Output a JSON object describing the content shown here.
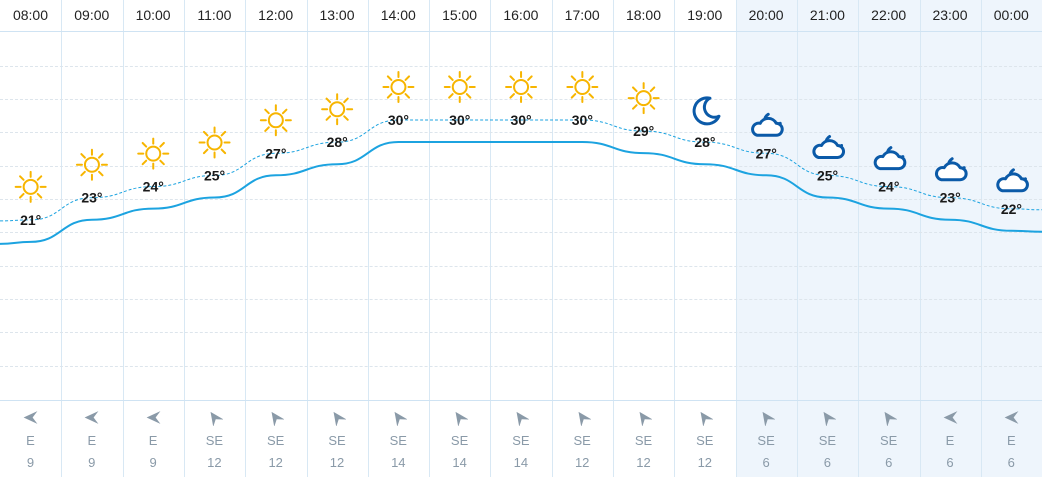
{
  "forecast": {
    "hours": [
      {
        "time": "08:00",
        "temp": 21,
        "temp_label": "21°",
        "icon": "sun-icon",
        "wind_dir": "E",
        "wind_speed": "9",
        "night": false
      },
      {
        "time": "09:00",
        "temp": 23,
        "temp_label": "23°",
        "icon": "sun-icon",
        "wind_dir": "E",
        "wind_speed": "9",
        "night": false
      },
      {
        "time": "10:00",
        "temp": 24,
        "temp_label": "24°",
        "icon": "sun-icon",
        "wind_dir": "E",
        "wind_speed": "9",
        "night": false
      },
      {
        "time": "11:00",
        "temp": 25,
        "temp_label": "25°",
        "icon": "sun-icon",
        "wind_dir": "SE",
        "wind_speed": "12",
        "night": false
      },
      {
        "time": "12:00",
        "temp": 27,
        "temp_label": "27°",
        "icon": "sun-icon",
        "wind_dir": "SE",
        "wind_speed": "12",
        "night": false
      },
      {
        "time": "13:00",
        "temp": 28,
        "temp_label": "28°",
        "icon": "sun-icon",
        "wind_dir": "SE",
        "wind_speed": "12",
        "night": false
      },
      {
        "time": "14:00",
        "temp": 30,
        "temp_label": "30°",
        "icon": "sun-icon",
        "wind_dir": "SE",
        "wind_speed": "14",
        "night": false
      },
      {
        "time": "15:00",
        "temp": 30,
        "temp_label": "30°",
        "icon": "sun-icon",
        "wind_dir": "SE",
        "wind_speed": "14",
        "night": false
      },
      {
        "time": "16:00",
        "temp": 30,
        "temp_label": "30°",
        "icon": "sun-icon",
        "wind_dir": "SE",
        "wind_speed": "14",
        "night": false
      },
      {
        "time": "17:00",
        "temp": 30,
        "temp_label": "30°",
        "icon": "sun-icon",
        "wind_dir": "SE",
        "wind_speed": "12",
        "night": false
      },
      {
        "time": "18:00",
        "temp": 29,
        "temp_label": "29°",
        "icon": "sun-icon",
        "wind_dir": "SE",
        "wind_speed": "12",
        "night": false
      },
      {
        "time": "19:00",
        "temp": 28,
        "temp_label": "28°",
        "icon": "moon-icon",
        "wind_dir": "SE",
        "wind_speed": "12",
        "night": false
      },
      {
        "time": "20:00",
        "temp": 27,
        "temp_label": "27°",
        "icon": "cloud-moon-icon",
        "wind_dir": "SE",
        "wind_speed": "6",
        "night": true
      },
      {
        "time": "21:00",
        "temp": 25,
        "temp_label": "25°",
        "icon": "cloud-moon-icon",
        "wind_dir": "SE",
        "wind_speed": "6",
        "night": true
      },
      {
        "time": "22:00",
        "temp": 24,
        "temp_label": "24°",
        "icon": "cloud-moon-icon",
        "wind_dir": "SE",
        "wind_speed": "6",
        "night": true
      },
      {
        "time": "23:00",
        "temp": 23,
        "temp_label": "23°",
        "icon": "cloud-moon-icon",
        "wind_dir": "E",
        "wind_speed": "6",
        "night": true
      },
      {
        "time": "00:00",
        "temp": 22,
        "temp_label": "22°",
        "icon": "cloud-moon-icon",
        "wind_dir": "E",
        "wind_speed": "6",
        "night": true
      }
    ],
    "colors": {
      "sun": "#f7b500",
      "night_icon": "#0b5aa8",
      "temp_line": "#1ca3e0",
      "dashed_line": "#1ca3e0",
      "night_background": "#eef5fc",
      "wind_arrow": "#8a9aa8"
    }
  },
  "chart_data": {
    "type": "line",
    "x": [
      "08:00",
      "09:00",
      "10:00",
      "11:00",
      "12:00",
      "13:00",
      "14:00",
      "15:00",
      "16:00",
      "17:00",
      "18:00",
      "19:00",
      "20:00",
      "21:00",
      "22:00",
      "23:00",
      "00:00"
    ],
    "series": [
      {
        "values": [
          21,
          23,
          24,
          25,
          27,
          28,
          30,
          30,
          30,
          30,
          29,
          28,
          27,
          25,
          24,
          23,
          22
        ]
      }
    ],
    "grid": true
  }
}
